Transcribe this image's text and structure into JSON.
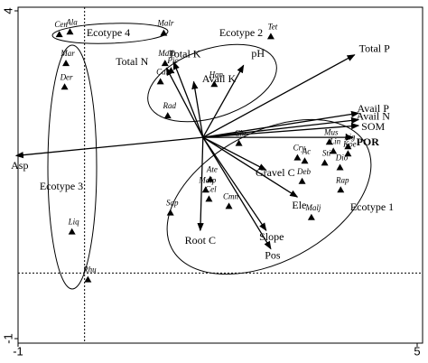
{
  "chart_data": {
    "type": "biplot",
    "xlim": [
      -1,
      5
    ],
    "ylim": [
      -1,
      4
    ],
    "xticks": [
      -1,
      5
    ],
    "yticks": [
      -1,
      4
    ],
    "reference_lines": {
      "x": 0,
      "y": 0
    },
    "color": "#000000",
    "points": {
      "labels": [
        "Ala",
        "Cen",
        "Malr",
        "Mar",
        "Der",
        "Malb",
        "Pic",
        "Cal",
        "Rad",
        "Han",
        "Tet",
        "Chr",
        "Cry",
        "Mus",
        "Lin",
        "Lig",
        "Koe",
        "Ac",
        "Sti",
        "Dio",
        "Deb",
        "Rap",
        "Ate",
        "Malp",
        "Cel",
        "Sap",
        "Cmn",
        "Malj",
        "Liq",
        "Rhu"
      ],
      "x": [
        -0.22,
        -0.38,
        1.19,
        -0.28,
        -0.3,
        1.21,
        1.3,
        1.14,
        1.25,
        1.95,
        2.8,
        2.32,
        3.2,
        3.68,
        3.74,
        3.96,
        3.96,
        3.31,
        3.61,
        3.84,
        3.27,
        3.85,
        1.89,
        1.82,
        1.87,
        1.29,
        2.17,
        3.41,
        -0.19,
        0.05
      ],
      "y": [
        3.68,
        3.64,
        3.66,
        3.2,
        2.84,
        3.2,
        3.09,
        2.92,
        2.4,
        2.88,
        3.61,
        1.98,
        1.76,
        2.0,
        1.86,
        1.93,
        1.82,
        1.71,
        1.68,
        1.61,
        1.4,
        1.27,
        1.43,
        1.27,
        1.13,
        0.92,
        1.02,
        0.85,
        0.63,
        -0.1
      ]
    },
    "vectors": {
      "origin": [
        1.78,
        2.07
      ],
      "labels": [
        "Total P",
        "Avail P",
        "Avail N",
        "SOM",
        "POR",
        "Asp",
        "Total N",
        "Total K",
        "Avail K",
        "pH",
        "Ele",
        "Gravel C",
        "Slope",
        "Pos",
        "Root C"
      ],
      "x": [
        4.06,
        4.12,
        4.12,
        4.12,
        4.04,
        -1.03,
        1.23,
        1.34,
        1.64,
        2.39,
        3.2,
        2.73,
        2.73,
        2.8,
        1.74
      ],
      "y": [
        3.33,
        2.44,
        2.34,
        2.25,
        2.07,
        1.79,
        3.13,
        3.22,
        2.92,
        3.17,
        1.16,
        1.57,
        0.65,
        0.37,
        0.65
      ]
    },
    "groups": [
      "Ecotype 4",
      "Ecotype 2",
      "Ecotype 3",
      "Ecotype 1"
    ]
  }
}
